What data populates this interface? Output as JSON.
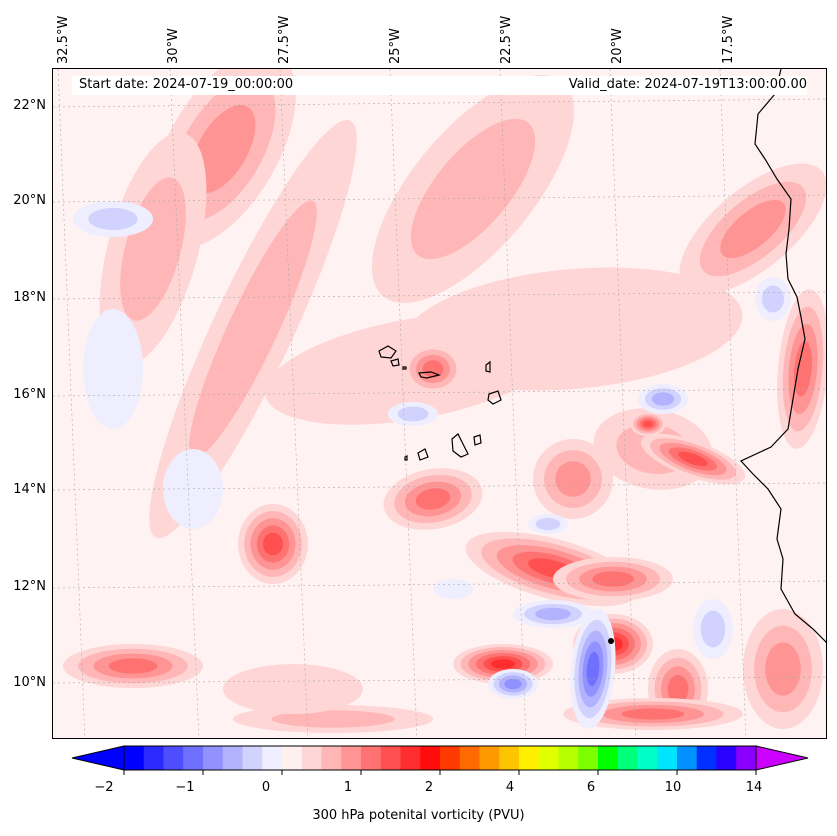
{
  "map": {
    "start_date": "Start date: 2024-07-19_00:00:00",
    "valid_date": "Valid_date: 2024-07-19T13:00:00.00",
    "lon_labels": [
      "32.5°W",
      "30°W",
      "27.5°W",
      "25°W",
      "22.5°W",
      "20°W",
      "17.5°W"
    ],
    "lat_labels": [
      "22°N",
      "20°N",
      "18°N",
      "16°N",
      "14°N",
      "12°N",
      "10°N"
    ],
    "land_color": "#000000",
    "background_field_color": "#fff2f2"
  },
  "colorbar": {
    "label": "300 hPa potenital vorticity (PVU)",
    "tick_labels": [
      "−2",
      "−1",
      "0",
      "1",
      "2",
      "4",
      "6",
      "10",
      "14"
    ],
    "colors": [
      "#0000ff",
      "#2a2aff",
      "#4e4eff",
      "#7070ff",
      "#9292ff",
      "#b2b2ff",
      "#d2d2ff",
      "#eeeeff",
      "#fff0f0",
      "#ffd6d6",
      "#ffb6b6",
      "#ff9494",
      "#ff7272",
      "#ff5050",
      "#ff2e2e",
      "#ff0c0c",
      "#ff3a00",
      "#ff6a00",
      "#ff9900",
      "#ffc400",
      "#ffee00",
      "#e0ff00",
      "#b4ff00",
      "#7cff00",
      "#00ff00",
      "#00ff7a",
      "#00ffc8",
      "#00e5ff",
      "#0090ff",
      "#0030ff",
      "#2a00ff",
      "#8a00ff"
    ],
    "extend_low_color": "#0000ff",
    "extend_high_color": "#cc00ff"
  }
}
